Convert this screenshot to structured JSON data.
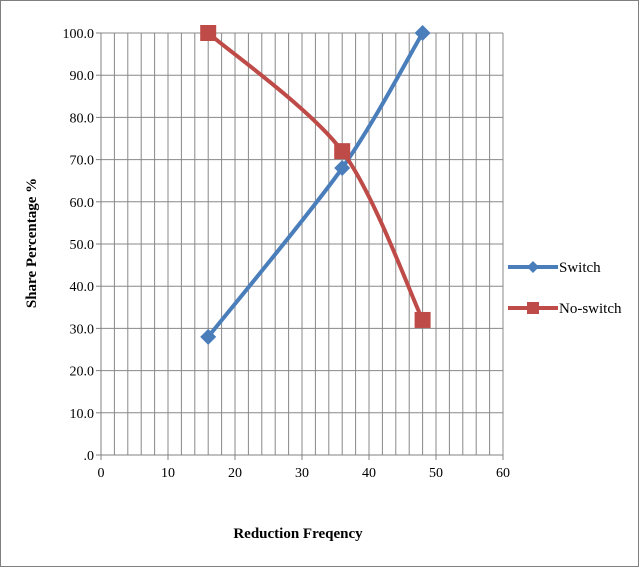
{
  "chart_data": {
    "type": "line",
    "title": "",
    "xlabel": "Reduction Freqency",
    "ylabel": "Share Percentage %",
    "xlim": [
      0,
      60
    ],
    "ylim": [
      0,
      100
    ],
    "x_ticks": [
      0,
      10,
      20,
      30,
      40,
      50,
      60
    ],
    "x_tick_labels": [
      "0",
      "10",
      "20",
      "30",
      "40",
      "50",
      "60"
    ],
    "y_ticks": [
      0,
      10,
      20,
      30,
      40,
      50,
      60,
      70,
      80,
      90,
      100
    ],
    "y_tick_labels": [
      ".0",
      "10.0",
      "20.0",
      "30.0",
      "40.0",
      "50.0",
      "60.0",
      "70.0",
      "80.0",
      "90.0",
      "100.0"
    ],
    "grid": true,
    "legend_position": "right",
    "series": [
      {
        "name": "Switch",
        "color": "#4a7ebb",
        "marker": "diamond",
        "x": [
          16,
          36,
          48
        ],
        "y": [
          28,
          68,
          100
        ]
      },
      {
        "name": "No-switch",
        "color": "#be4b48",
        "marker": "square",
        "x": [
          16,
          36,
          48
        ],
        "y": [
          100,
          72,
          32
        ]
      }
    ]
  }
}
